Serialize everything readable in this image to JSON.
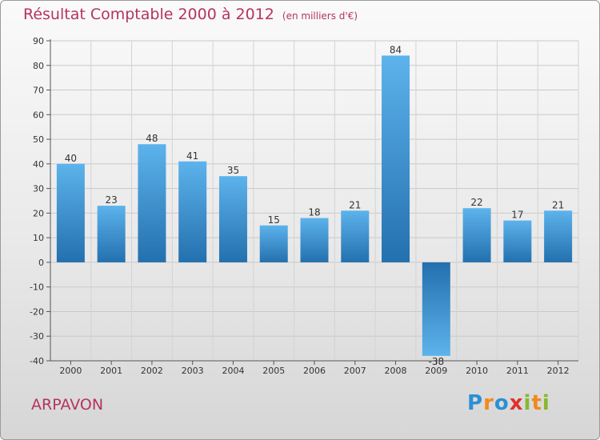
{
  "title": "Résultat Comptable 2000 à 2012",
  "subtitle": "(en milliers d'€)",
  "commune": "ARPAVON",
  "brand": {
    "letters": [
      "P",
      "r",
      "o",
      "x",
      "i",
      "t",
      "i"
    ],
    "colors": [
      "#2b8fd6",
      "#f08a1c",
      "#2b8fd6",
      "#e0302f",
      "#86b92e",
      "#f08a1c",
      "#86b92e"
    ]
  },
  "colors": {
    "title": "#b5345c",
    "bar_dark": "#2370ae",
    "bar_light": "#5db3ec"
  },
  "chart_data": {
    "type": "bar",
    "title": "Résultat Comptable 2000 à 2012",
    "xlabel": "",
    "ylabel": "",
    "categories": [
      "2000",
      "2001",
      "2002",
      "2003",
      "2004",
      "2005",
      "2006",
      "2007",
      "2008",
      "2009",
      "2010",
      "2011",
      "2012"
    ],
    "values": [
      40,
      23,
      48,
      41,
      35,
      15,
      18,
      21,
      84,
      -38,
      22,
      17,
      21
    ],
    "ylim": [
      -40,
      90
    ],
    "yticks": [
      90,
      80,
      70,
      60,
      50,
      40,
      30,
      20,
      10,
      0,
      -10,
      -20,
      -30,
      -40
    ],
    "grid": true
  }
}
